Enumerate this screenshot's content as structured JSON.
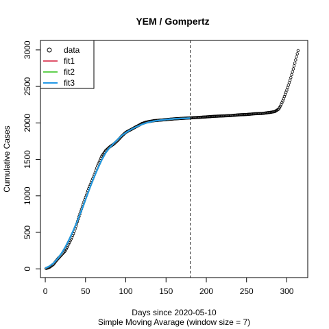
{
  "chart_data": {
    "type": "scatter",
    "title": "YEM / Gompertz",
    "xlabel": "Days since 2020-05-10",
    "xlabel2": "Simple Moving Avarage (window size = 7)",
    "ylabel": "Cumulative Cases",
    "xlim": [
      -6,
      326
    ],
    "ylim": [
      -120,
      3130
    ],
    "xticks": [
      0,
      50,
      100,
      150,
      200,
      250,
      300
    ],
    "yticks": [
      0,
      500,
      1000,
      1500,
      2000,
      2500,
      3000
    ],
    "grid": false,
    "legend": {
      "position": "top-left",
      "entries": [
        {
          "label": "data",
          "kind": "point",
          "color": "#000000"
        },
        {
          "label": "fit1",
          "kind": "line",
          "color": "#DF536B"
        },
        {
          "label": "fit2",
          "kind": "line",
          "color": "#61D04F"
        },
        {
          "label": "fit3",
          "kind": "line",
          "color": "#2297E6"
        }
      ]
    },
    "reference_line": {
      "x": 180,
      "style": "dashed",
      "color": "#000000"
    },
    "data_points": {
      "anchors_x": [
        1,
        5,
        10,
        15,
        20,
        25,
        30,
        35,
        40,
        45,
        50,
        55,
        60,
        65,
        70,
        75,
        80,
        85,
        90,
        95,
        100,
        105,
        110,
        115,
        120,
        125,
        130,
        135,
        140,
        145,
        150,
        155,
        160,
        165,
        170,
        175,
        180,
        190,
        200,
        210,
        220,
        230,
        240,
        250,
        260,
        270,
        280,
        285,
        290,
        292,
        295,
        300,
        305,
        310,
        314
      ],
      "anchors_y": [
        5,
        20,
        60,
        130,
        190,
        250,
        360,
        480,
        650,
        820,
        980,
        1130,
        1260,
        1410,
        1540,
        1620,
        1670,
        1710,
        1760,
        1820,
        1870,
        1900,
        1930,
        1960,
        1990,
        2010,
        2020,
        2030,
        2035,
        2040,
        2045,
        2050,
        2055,
        2058,
        2062,
        2065,
        2068,
        2075,
        2082,
        2090,
        2095,
        2100,
        2110,
        2115,
        2125,
        2130,
        2145,
        2155,
        2190,
        2230,
        2300,
        2450,
        2620,
        2820,
        2990
      ],
      "x_start": 1,
      "x_end": 314,
      "step": 1
    },
    "series": [
      {
        "name": "fit1",
        "color": "#DF536B",
        "x": [
          0,
          5,
          10,
          15,
          20,
          25,
          30,
          35,
          40,
          45,
          50,
          55,
          60,
          65,
          70,
          75,
          80,
          85,
          90,
          95,
          100,
          105,
          110,
          115,
          120,
          125,
          130,
          135,
          140,
          145,
          150,
          155,
          160,
          165,
          170,
          175,
          180
        ],
        "y": [
          10,
          35,
          75,
          135,
          210,
          300,
          410,
          530,
          660,
          800,
          950,
          1100,
          1240,
          1370,
          1490,
          1590,
          1660,
          1720,
          1775,
          1825,
          1865,
          1900,
          1930,
          1955,
          1978,
          1997,
          2012,
          2024,
          2033,
          2040,
          2046,
          2051,
          2055,
          2058,
          2061,
          2063,
          2065
        ]
      },
      {
        "name": "fit2",
        "color": "#61D04F",
        "x": [
          0,
          5,
          10,
          15,
          20,
          25,
          30,
          35,
          40,
          45,
          50,
          55,
          60,
          65,
          70,
          75,
          80,
          85,
          90,
          95,
          100,
          105,
          110,
          115,
          120,
          125,
          130,
          135,
          140,
          145,
          150,
          155,
          160,
          165,
          170,
          175,
          180
        ],
        "y": [
          10,
          35,
          75,
          135,
          210,
          300,
          410,
          530,
          660,
          800,
          950,
          1100,
          1240,
          1370,
          1490,
          1590,
          1660,
          1720,
          1775,
          1825,
          1865,
          1900,
          1930,
          1955,
          1978,
          1997,
          2012,
          2024,
          2033,
          2040,
          2046,
          2051,
          2055,
          2058,
          2061,
          2063,
          2065
        ]
      },
      {
        "name": "fit3",
        "color": "#2297E6",
        "x": [
          0,
          5,
          10,
          15,
          20,
          25,
          30,
          35,
          40,
          45,
          50,
          55,
          60,
          65,
          70,
          75,
          80,
          85,
          90,
          95,
          100,
          105,
          110,
          115,
          120,
          125,
          130,
          135,
          140,
          145,
          150,
          155,
          160,
          165,
          170,
          175,
          180
        ],
        "y": [
          10,
          35,
          75,
          135,
          210,
          300,
          410,
          530,
          660,
          800,
          950,
          1100,
          1240,
          1370,
          1490,
          1590,
          1660,
          1720,
          1775,
          1825,
          1865,
          1900,
          1930,
          1955,
          1978,
          1997,
          2012,
          2024,
          2033,
          2040,
          2046,
          2051,
          2055,
          2058,
          2061,
          2063,
          2065
        ]
      }
    ]
  }
}
